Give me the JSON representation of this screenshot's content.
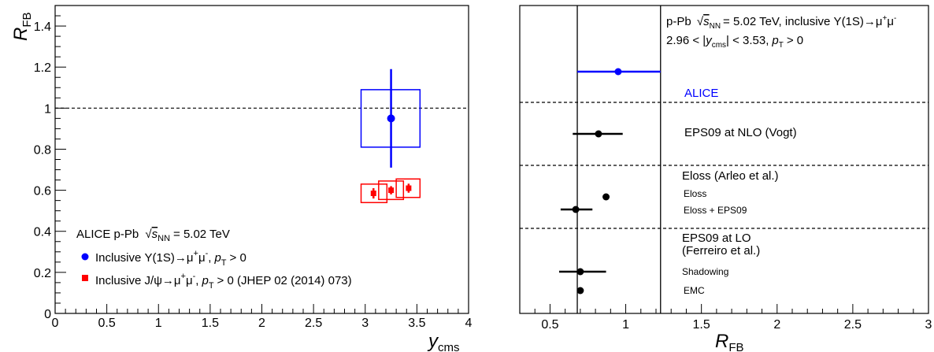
{
  "chart_data": [
    {
      "type": "scatter",
      "xlim": [
        0,
        4
      ],
      "ylim": [
        0,
        1.5
      ],
      "x_ticks": [
        0,
        0.5,
        1,
        1.5,
        2,
        2.5,
        3,
        3.5,
        4
      ],
      "x_tick_labels": [
        "0",
        "0.5",
        "1",
        "1.5",
        "2",
        "2.5",
        "3",
        "3.5",
        "4"
      ],
      "y_ticks": [
        0,
        0.2,
        0.4,
        0.6,
        0.8,
        1,
        1.2,
        1.4
      ],
      "y_tick_labels": [
        "0",
        "0.2",
        "0.4",
        "0.6",
        "0.8",
        "1",
        "1.2",
        "1.4"
      ],
      "xlabel": {
        "main": "y",
        "sub": "cms"
      },
      "ylabel": {
        "main": "R",
        "sub": "FB"
      },
      "reference_line": {
        "y": 1,
        "style": "dashed"
      },
      "grid": false,
      "legend_position": "bottom-left",
      "legend": {
        "header_prefix": "ALICE p-Pb",
        "header_sqrt": "s",
        "header_sub": "NN",
        "header_value": "= 5.02 TeV",
        "entries": [
          {
            "prefix": "Inclusive Υ(1S)→μ",
            "sup1": "+",
            "mid": "μ",
            "sup2": "-",
            "sep": ",",
            "pt": "p",
            "pt_sub": "T",
            "suffix": "> 0"
          },
          {
            "prefix": "Inclusive J/ψ→μ",
            "sup1": "+",
            "mid": "μ",
            "sup2": "-",
            "sep": ",",
            "pt": "p",
            "pt_sub": "T",
            "suffix": "> 0 (JHEP 02 (2014) 073)"
          }
        ]
      },
      "series": [
        {
          "color": "#0000ff",
          "marker": "circle",
          "points": [
            {
              "x": 3.25,
              "y": 0.95,
              "xlow": 2.96,
              "xhigh": 3.53,
              "stat": 0.24,
              "syst": 0.14
            }
          ]
        },
        {
          "color": "#ff0000",
          "marker": "square",
          "points": [
            {
              "x": 3.08,
              "y": 0.585,
              "xlow": 2.96,
              "xhigh": 3.21,
              "stat": 0.025,
              "syst": 0.045
            },
            {
              "x": 3.25,
              "y": 0.6,
              "xlow": 3.13,
              "xhigh": 3.37,
              "stat": 0.02,
              "syst": 0.045
            },
            {
              "x": 3.42,
              "y": 0.61,
              "xlow": 3.3,
              "xhigh": 3.53,
              "stat": 0.022,
              "syst": 0.045
            }
          ]
        }
      ]
    },
    {
      "type": "scatter",
      "xlim": [
        0.3,
        3
      ],
      "x_ticks": [
        0.5,
        1,
        1.5,
        2,
        2.5,
        3
      ],
      "x_tick_labels": [
        "0.5",
        "1",
        "1.5",
        "2",
        "2.5",
        "3"
      ],
      "xlabel": {
        "main": "R",
        "sub": "FB"
      },
      "grid": false,
      "band": {
        "low": 0.68,
        "high": 1.23,
        "style": "solid"
      },
      "header": {
        "line1_prefix": "p-Pb",
        "line1_sqrt": "s",
        "line1_sub": "NN",
        "line1_value": "= 5.02 TeV, inclusive Υ(1S)→μ",
        "line1_sup1": "+",
        "line1_mid": "μ",
        "line1_sup2": "-",
        "line2_prefix": "2.96 < |",
        "line2_y": "y",
        "line2_ysub": "cms",
        "line2_mid": "| < 3.53,",
        "line2_pt": "p",
        "line2_ptsub": "T",
        "line2_suffix": "> 0"
      },
      "groups": [
        {
          "label": "ALICE",
          "color": "#0000ff",
          "points": [
            {
              "label": "",
              "value": 0.95,
              "low": 0.68,
              "high": 1.23
            }
          ]
        },
        {
          "label": "EPS09 at NLO (Vogt)",
          "color": "#000000",
          "points": [
            {
              "label": "",
              "value": 0.82,
              "low": 0.65,
              "high": 0.98
            }
          ]
        },
        {
          "label": "Eloss (Arleo et al.)",
          "color": "#000000",
          "points": [
            {
              "label": "Eloss",
              "value": 0.87,
              "low": 0.87,
              "high": 0.87
            },
            {
              "label": "Eloss + EPS09",
              "value": 0.67,
              "low": 0.57,
              "high": 0.78
            }
          ]
        },
        {
          "label": "EPS09 at LO",
          "label2": "(Ferreiro et al.)",
          "color": "#000000",
          "points": [
            {
              "label": "Shadowing",
              "value": 0.7,
              "low": 0.56,
              "high": 0.87
            },
            {
              "label": "EMC",
              "value": 0.7,
              "low": 0.7,
              "high": 0.7
            }
          ]
        }
      ]
    }
  ]
}
